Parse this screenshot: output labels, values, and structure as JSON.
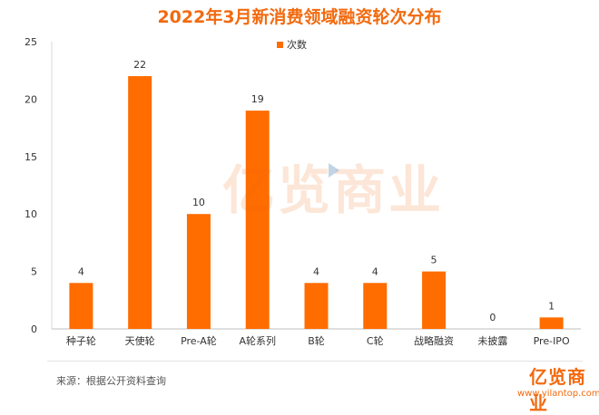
{
  "title": "2022年3月新消费领域融资轮次分布",
  "source": "来源：根据公开资料查询",
  "watermark": "亿览商业",
  "logo": "亿览商业",
  "url": "www.yilantop.com",
  "colors": {
    "bar": "#ff6c00",
    "title": "#f26a0f"
  },
  "chart_data": {
    "type": "bar",
    "title": "2022年3月新消费领域融资轮次分布",
    "categories": [
      "种子轮",
      "天使轮",
      "Pre-A轮",
      "A轮系列",
      "B轮",
      "C轮",
      "战略融资",
      "未披露",
      "Pre-IPO"
    ],
    "series": [
      {
        "name": "次数",
        "values": [
          4,
          22,
          10,
          19,
          4,
          4,
          5,
          0,
          1
        ]
      }
    ],
    "yticks": [
      0,
      5,
      10,
      15,
      20,
      25
    ],
    "ylim": [
      0,
      25
    ],
    "xlabel": "",
    "ylabel": "",
    "legend": "top-center",
    "grid": false
  }
}
